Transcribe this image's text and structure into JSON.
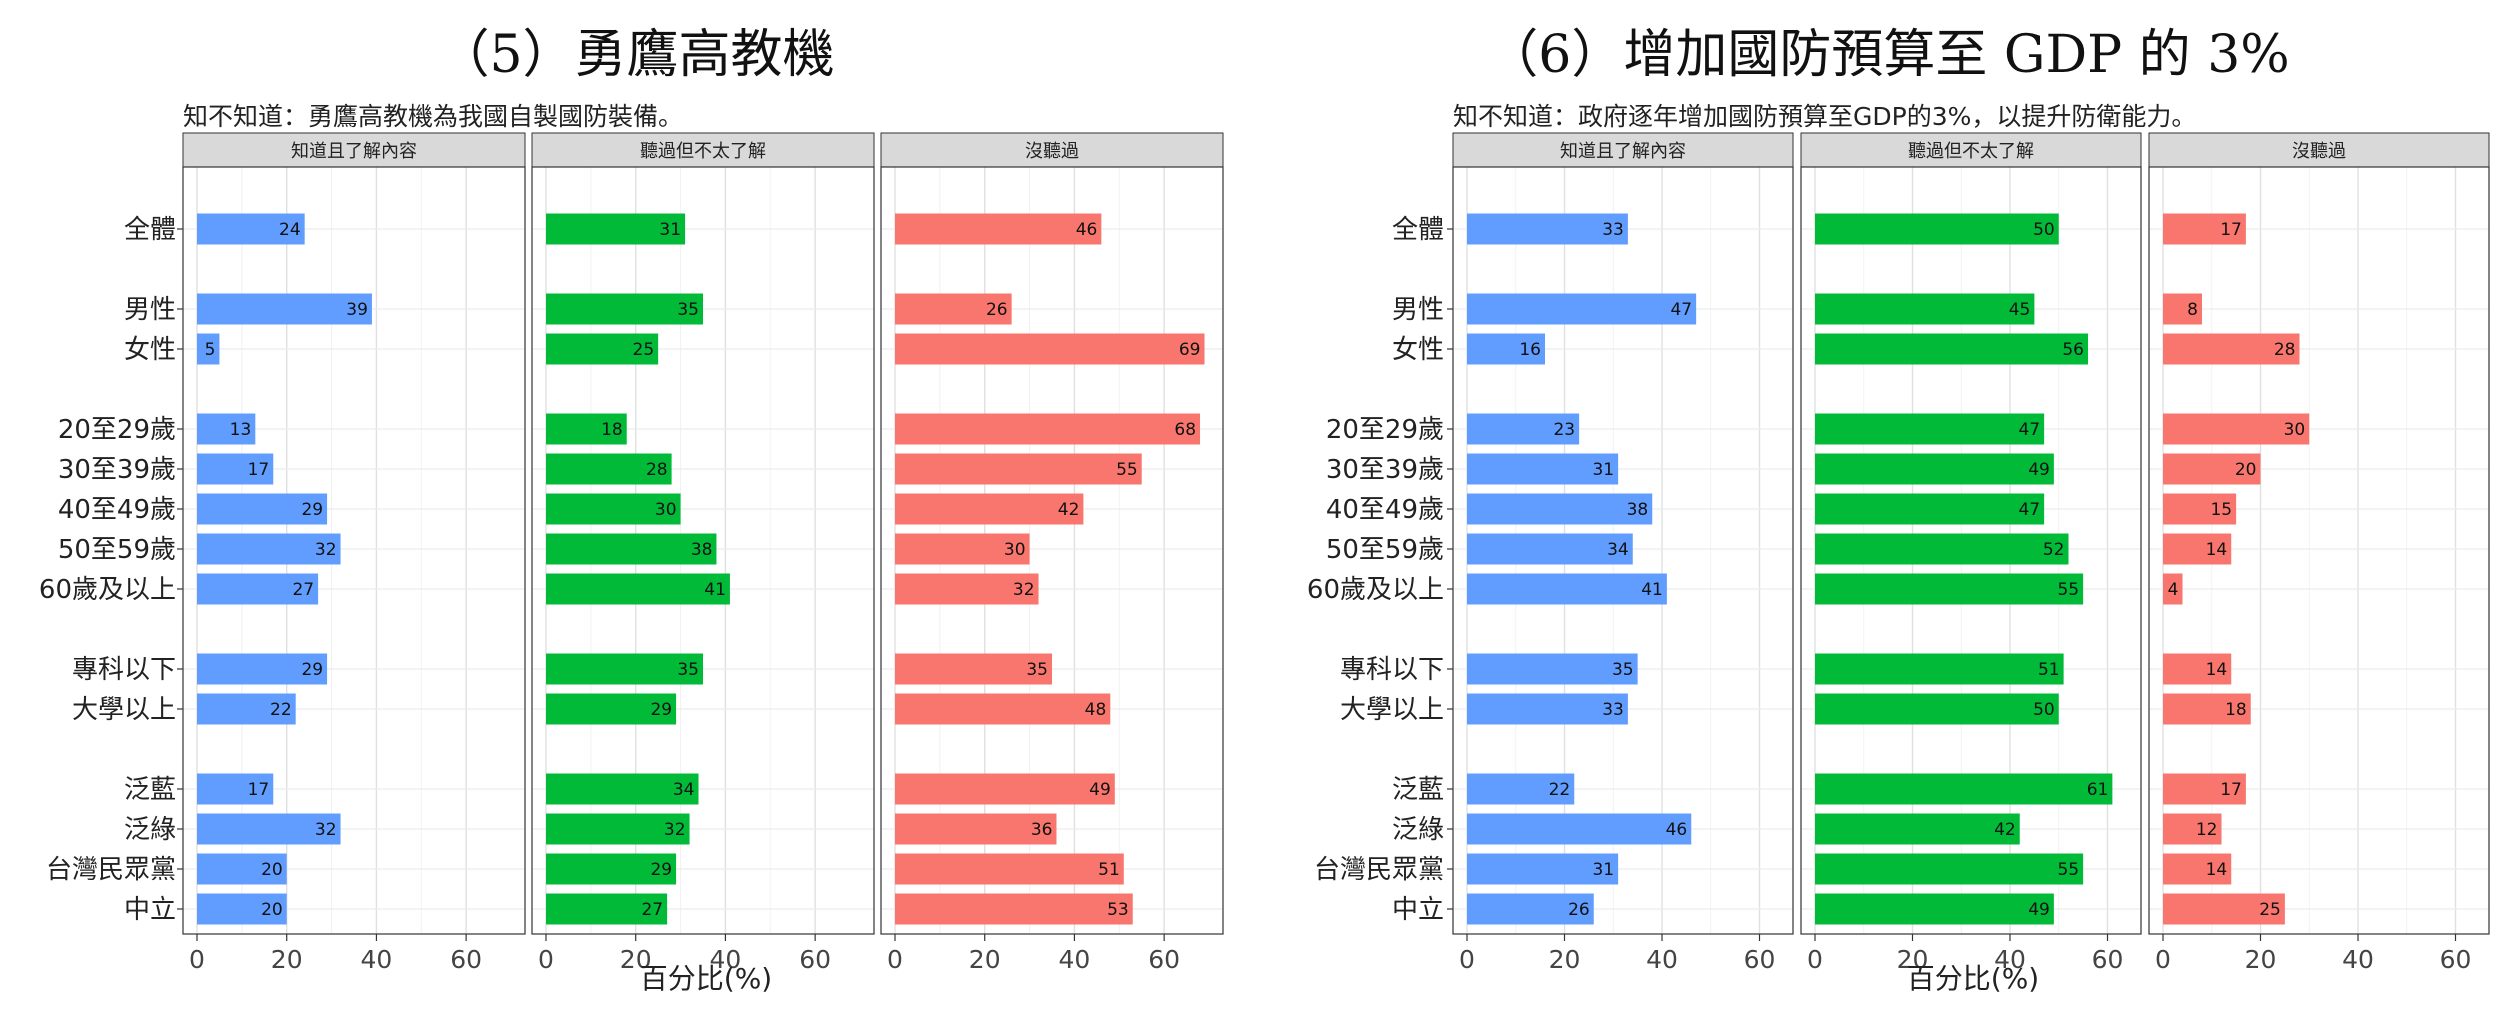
{
  "colors": {
    "aware_understand": "#619CFF",
    "heard_not_understand": "#00BA38",
    "never_heard": "#F8766D"
  },
  "chart_data": [
    {
      "type": "bar",
      "orientation": "horizontal",
      "title": "（5）勇鷹高教機",
      "subtitle": "知不知道：勇鷹高教機為我國自製國防裝備。",
      "xlabel": "百分比(%)",
      "xlim": [
        0,
        70
      ],
      "xticks": [
        0,
        20,
        40,
        60
      ],
      "grid": true,
      "categories": [
        "全體",
        "男性",
        "女性",
        "20至29歲",
        "30至39歲",
        "40至49歲",
        "50至59歲",
        "60歲及以上",
        "專科以下",
        "大學以上",
        "泛藍",
        "泛綠",
        "台灣民眾黨",
        "中立"
      ],
      "series": [
        {
          "name": "知道且了解內容",
          "color": "#619CFF",
          "values": [
            24,
            39,
            5,
            13,
            17,
            29,
            32,
            27,
            29,
            22,
            17,
            32,
            20,
            20
          ]
        },
        {
          "name": "聽過但不太了解",
          "color": "#00BA38",
          "values": [
            31,
            35,
            25,
            18,
            28,
            30,
            38,
            41,
            35,
            29,
            34,
            32,
            29,
            27
          ]
        },
        {
          "name": "沒聽過",
          "color": "#F8766D",
          "values": [
            46,
            26,
            69,
            68,
            55,
            42,
            30,
            32,
            35,
            48,
            49,
            36,
            51,
            53
          ]
        }
      ]
    },
    {
      "type": "bar",
      "orientation": "horizontal",
      "title": "（6）增加國防預算至 GDP 的 3%",
      "subtitle": "知不知道：政府逐年增加國防預算至GDP的3%，以提升防衛能力。",
      "xlabel": "百分比(%)",
      "xlim": [
        0,
        64
      ],
      "xticks": [
        0,
        20,
        40,
        60
      ],
      "grid": true,
      "categories": [
        "全體",
        "男性",
        "女性",
        "20至29歲",
        "30至39歲",
        "40至49歲",
        "50至59歲",
        "60歲及以上",
        "專科以下",
        "大學以上",
        "泛藍",
        "泛綠",
        "台灣民眾黨",
        "中立"
      ],
      "series": [
        {
          "name": "知道且了解內容",
          "color": "#619CFF",
          "values": [
            33,
            47,
            16,
            23,
            31,
            38,
            34,
            41,
            35,
            33,
            22,
            46,
            31,
            26
          ]
        },
        {
          "name": "聽過但不太了解",
          "color": "#00BA38",
          "values": [
            50,
            45,
            56,
            47,
            49,
            47,
            52,
            55,
            51,
            50,
            61,
            42,
            55,
            49
          ]
        },
        {
          "name": "沒聽過",
          "color": "#F8766D",
          "values": [
            17,
            8,
            28,
            30,
            20,
            15,
            14,
            4,
            14,
            18,
            17,
            12,
            14,
            25
          ]
        }
      ]
    }
  ]
}
